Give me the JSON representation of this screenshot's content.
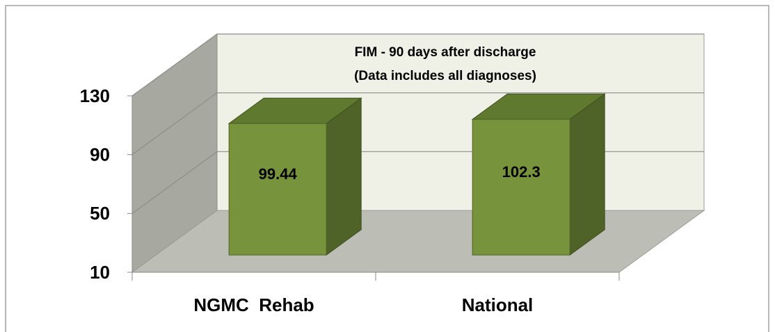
{
  "chart_data": {
    "type": "bar3d",
    "title": "FIM - 90 days after discharge",
    "subtitle": "(Data includes all diagnoses)",
    "categories": [
      "NGMC  Rehab",
      "National"
    ],
    "values": [
      99.44,
      102.3
    ],
    "color": "#77933c",
    "ylim": [
      10,
      130
    ],
    "yticks": [
      10,
      50,
      90,
      130
    ],
    "grid": true
  }
}
